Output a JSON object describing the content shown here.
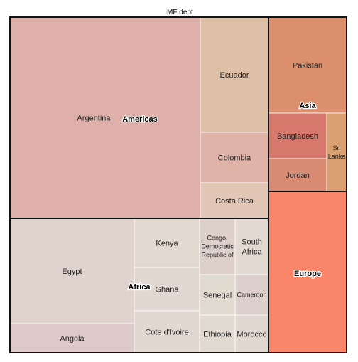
{
  "chart_data": {
    "type": "treemap",
    "title": "IMF debt",
    "groups": [
      {
        "name": "Americas",
        "color": "#dfb0a9",
        "items": [
          {
            "name": "Argentina",
            "color": "#dfb0a9"
          },
          {
            "name": "Ecuador",
            "color": "#ddc0a6"
          },
          {
            "name": "Colombia",
            "color": "#e0b3a8"
          },
          {
            "name": "Costa Rica",
            "color": "#e3c7b6"
          }
        ]
      },
      {
        "name": "Asia",
        "color": "#dc8f6d",
        "items": [
          {
            "name": "Pakistan",
            "color": "#dc8f6d"
          },
          {
            "name": "Bangladesh",
            "color": "#d6786b"
          },
          {
            "name": "Jordan",
            "color": "#d98a73"
          },
          {
            "name": "Sri Lanka",
            "color": "#dba06f"
          }
        ]
      },
      {
        "name": "Africa",
        "color": "#e0d3cd",
        "items": [
          {
            "name": "Egypt",
            "color": "#e0d3cd"
          },
          {
            "name": "Angola",
            "color": "#ddc9c9"
          },
          {
            "name": "Kenya",
            "color": "#e2d9d0"
          },
          {
            "name": "Ghana",
            "color": "#e2d8d2"
          },
          {
            "name": "Cote d'Ivoire",
            "color": "#e2d8d2"
          },
          {
            "name": "Congo, Democratic Republic of",
            "color": "#ddcfca"
          },
          {
            "name": "South Africa",
            "color": "#e2d9d0"
          },
          {
            "name": "Senegal",
            "color": "#e1dad1"
          },
          {
            "name": "Cameroon",
            "color": "#ddcfcb"
          },
          {
            "name": "Ethiopia",
            "color": "#e1dad1"
          },
          {
            "name": "Morocco",
            "color": "#e0d7d1"
          }
        ]
      },
      {
        "name": "Europe",
        "color": "#f98668",
        "items": []
      }
    ]
  }
}
